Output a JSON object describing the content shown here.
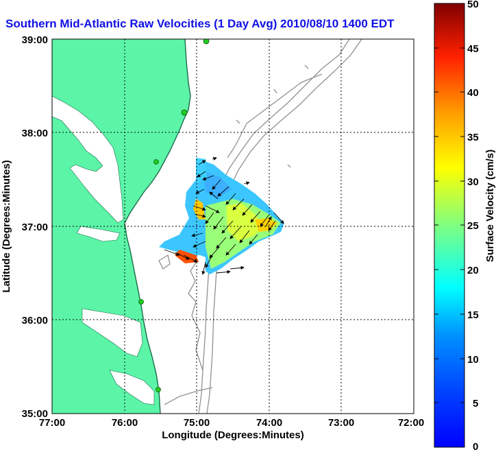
{
  "title": "Southern Mid-Atlantic Raw Velocities (1 Day Avg) 2010/08/10 1400 EDT",
  "x_axis": {
    "label": "Longitude (Degrees:Minutes)",
    "ticks": [
      "77:00",
      "76:00",
      "75:00",
      "74:00",
      "73:00",
      "72:00"
    ],
    "range_deg_west": [
      77,
      72
    ]
  },
  "y_axis": {
    "label": "Latitude (Degrees:Minutes)",
    "ticks": [
      "39:00",
      "38:00",
      "37:00",
      "36:00",
      "35:00"
    ],
    "range_deg_north": [
      35,
      39
    ]
  },
  "colorbar": {
    "label": "Surface Velocity (cm/s)",
    "ticks": [
      "50",
      "45",
      "40",
      "35",
      "30",
      "25",
      "20",
      "15",
      "10",
      "5",
      "0"
    ],
    "range": [
      0,
      50
    ],
    "colormap": "jet"
  },
  "colors": {
    "land": "#5cf5a8",
    "water": "#ffffff",
    "bathymetry": "#909090",
    "grid": "#000000",
    "title": "#1010e6",
    "station": "#22cc22"
  },
  "grid": "dotted",
  "legend": "colorbar right"
}
